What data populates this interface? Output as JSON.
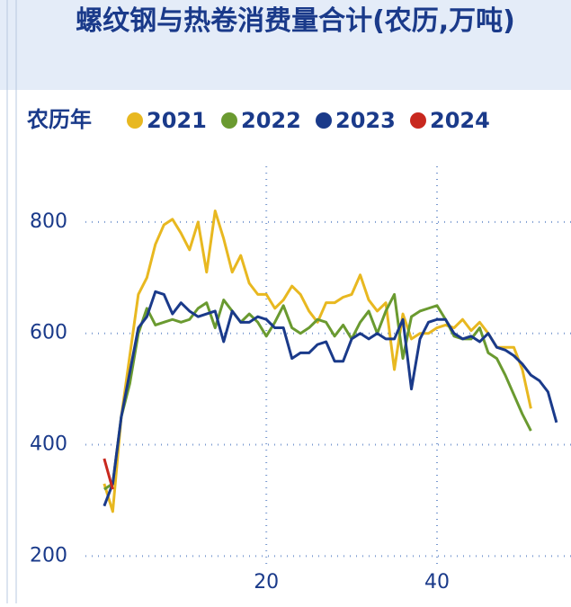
{
  "chart_data": {
    "type": "line",
    "title": "螺纹钢与热卷消费量合计(农历,万吨)",
    "legend_title": "农历年",
    "x": [
      1,
      2,
      3,
      4,
      5,
      6,
      7,
      8,
      9,
      10,
      11,
      12,
      13,
      14,
      15,
      16,
      17,
      18,
      19,
      20,
      21,
      22,
      23,
      24,
      25,
      26,
      27,
      28,
      29,
      30,
      31,
      32,
      33,
      34,
      35,
      36,
      37,
      38,
      39,
      40,
      41,
      42,
      43,
      44,
      45,
      46,
      47,
      48,
      49,
      50,
      51,
      52,
      53,
      54
    ],
    "series": [
      {
        "name": "2021",
        "color": "#e8b820",
        "values": [
          330,
          280,
          450,
          560,
          670,
          700,
          760,
          795,
          805,
          780,
          750,
          800,
          710,
          820,
          770,
          710,
          740,
          690,
          670,
          670,
          645,
          660,
          685,
          670,
          640,
          620,
          655,
          655,
          665,
          670,
          705,
          660,
          640,
          655,
          535,
          635,
          590,
          600,
          600,
          610,
          615,
          610,
          625,
          605,
          620,
          600,
          575,
          575,
          575,
          535,
          465,
          null,
          null,
          null
        ]
      },
      {
        "name": "2022",
        "color": "#6a9a30",
        "values": [
          320,
          330,
          450,
          510,
          600,
          645,
          615,
          620,
          625,
          620,
          625,
          645,
          655,
          610,
          660,
          640,
          620,
          635,
          620,
          595,
          620,
          650,
          610,
          600,
          610,
          625,
          620,
          595,
          615,
          590,
          620,
          640,
          600,
          640,
          670,
          555,
          630,
          640,
          645,
          650,
          625,
          595,
          590,
          590,
          610,
          565,
          555,
          525,
          490,
          455,
          425,
          null,
          null,
          null
        ]
      },
      {
        "name": "2023",
        "color": "#1a3a8a",
        "values": [
          290,
          330,
          450,
          530,
          610,
          630,
          675,
          670,
          635,
          655,
          640,
          630,
          635,
          640,
          585,
          640,
          620,
          620,
          630,
          625,
          610,
          610,
          555,
          565,
          565,
          580,
          585,
          550,
          550,
          590,
          600,
          590,
          600,
          590,
          590,
          625,
          500,
          590,
          620,
          625,
          625,
          600,
          590,
          595,
          585,
          600,
          575,
          570,
          560,
          545,
          525,
          515,
          495,
          440
        ]
      },
      {
        "name": "2024",
        "color": "#c8281e",
        "values": [
          375,
          320,
          null,
          null,
          null,
          null,
          null,
          null,
          null,
          null,
          null,
          null,
          null,
          null,
          null,
          null,
          null,
          null,
          null,
          null,
          null,
          null,
          null,
          null,
          null,
          null,
          null,
          null,
          null,
          null,
          null,
          null,
          null,
          null,
          null,
          null,
          null,
          null,
          null,
          null,
          null,
          null,
          null,
          null,
          null,
          null,
          null,
          null,
          null,
          null,
          null,
          null,
          null,
          null
        ]
      }
    ],
    "xlim": [
      -1.2,
      55.7
    ],
    "xticks": [
      20,
      40
    ],
    "ylim": [
      115,
      900
    ],
    "yticks": [
      200,
      400,
      600,
      800
    ],
    "grid": true
  }
}
